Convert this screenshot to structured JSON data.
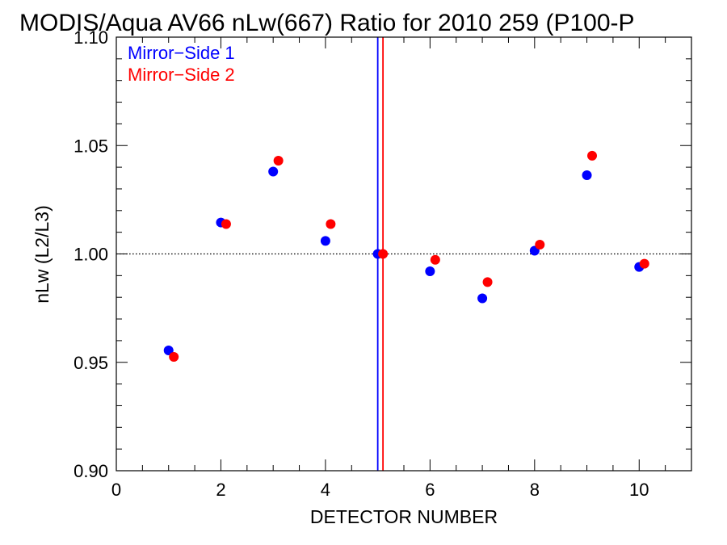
{
  "chart_data": {
    "type": "scatter",
    "title": "MODIS/Aqua AV66 nLw(667) Ratio for 2010 259 (P100-P",
    "xlabel": "DETECTOR NUMBER",
    "ylabel": "nLw (L2/L3)",
    "xlim": [
      0,
      11
    ],
    "ylim": [
      0.9,
      1.1
    ],
    "x_ticks": [
      0,
      2,
      4,
      6,
      8,
      10
    ],
    "x_tick_labels": [
      "0",
      "2",
      "4",
      "6",
      "8",
      "10"
    ],
    "y_ticks": [
      0.9,
      0.95,
      1.0,
      1.05,
      1.1
    ],
    "y_tick_labels": [
      "0.90",
      "0.95",
      "1.00",
      "1.05",
      "1.10"
    ],
    "reference_line_y": 1.0,
    "legend_position": "top-left",
    "series": [
      {
        "name": "Mirror−Side 1",
        "color": "#0000ff",
        "x": [
          1,
          2,
          3,
          4,
          5,
          6,
          7,
          8,
          9,
          10
        ],
        "y": [
          0.9555,
          1.0145,
          1.038,
          1.006,
          1.0,
          0.992,
          0.9795,
          1.0015,
          1.0363,
          0.994
        ],
        "vertical_line_x": 5.0
      },
      {
        "name": "Mirror−Side 2",
        "color": "#ff0000",
        "x": [
          1.1,
          2.1,
          3.1,
          4.1,
          5.1,
          6.1,
          7.1,
          8.1,
          9.1,
          10.1
        ],
        "y": [
          0.9525,
          1.0138,
          1.043,
          1.0138,
          1.0,
          0.9973,
          0.987,
          1.0043,
          1.0453,
          0.9955
        ],
        "vertical_line_x": 5.1
      }
    ]
  }
}
